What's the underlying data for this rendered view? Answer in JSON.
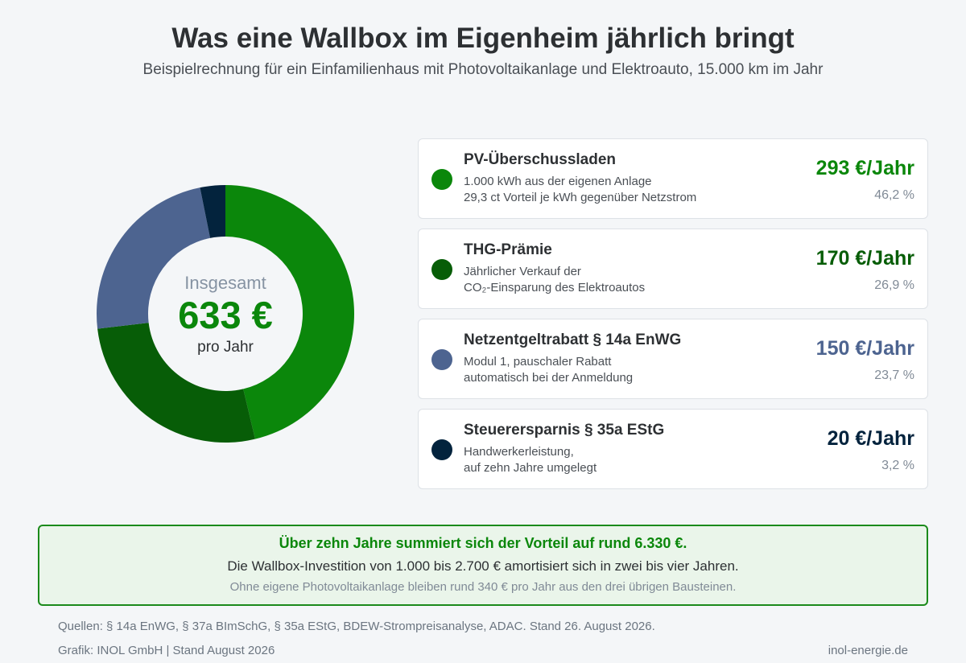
{
  "header": {
    "title": "Was eine Wallbox im Eigenheim jährlich bringt",
    "subtitle": "Beispielrechnung für ein Einfamilienhaus mit Photovoltaikanlage und Elektroauto, 15.000 km im Jahr"
  },
  "chart_data": {
    "type": "pie",
    "variant": "donut",
    "center": {
      "label": "Insgesamt",
      "value": "633 €",
      "unit": "pro Jahr"
    },
    "total": 633,
    "unit": "€/Jahr",
    "slices": [
      {
        "name": "PV-Überschussladen",
        "value": 293,
        "percent": 46.2,
        "color": "#0b870b"
      },
      {
        "name": "THG-Prämie",
        "value": 170,
        "percent": 26.9,
        "color": "#075d07"
      },
      {
        "name": "Netzentgeltrabatt § 14a EnWG",
        "value": 150,
        "percent": 23.7,
        "color": "#4d6490"
      },
      {
        "name": "Steuerersparnis § 35a EStG",
        "value": 20,
        "percent": 3.2,
        "color": "#03233d"
      }
    ]
  },
  "items": [
    {
      "name": "PV-Überschussladen",
      "desc1": "1.000 kWh aus der eigenen Anlage",
      "desc2": "29,3 ct Vorteil je kWh gegenüber Netzstrom",
      "amount": "293 €/Jahr",
      "percent": "46,2 %",
      "color": "#0b870b"
    },
    {
      "name": "THG-Prämie",
      "desc1": "Jährlicher Verkauf der",
      "desc2": "CO₂-Einsparung des Elektroautos",
      "amount": "170 €/Jahr",
      "percent": "26,9 %",
      "color": "#075d07"
    },
    {
      "name": "Netzentgeltrabatt § 14a EnWG",
      "desc1": "Modul 1, pauschaler Rabatt",
      "desc2": "automatisch bei der Anmeldung",
      "amount": "150 €/Jahr",
      "percent": "23,7 %",
      "color": "#4d6490"
    },
    {
      "name": "Steuerersparnis § 35a EStG",
      "desc1": "Handwerkerleistung,",
      "desc2": "auf zehn Jahre umgelegt",
      "amount": "20 €/Jahr",
      "percent": "3,2 %",
      "color": "#03233d"
    }
  ],
  "summary": {
    "headline": "Über zehn Jahre summiert sich der Vorteil auf rund 6.330 €.",
    "main": "Die Wallbox-Investition von 1.000 bis 2.700 € amortisiert sich in zwei bis vier Jahren.",
    "note": "Ohne eigene Photovoltaikanlage bleiben rund 340 € pro Jahr aus den drei übrigen Bausteinen."
  },
  "footer": {
    "sources": "Quellen: § 14a EnWG, § 37a BImSchG, § 35a EStG, BDEW-Strompreisanalyse, ADAC. Stand 26. August 2026.",
    "credit": "Grafik: INOL GmbH | Stand August 2026",
    "site": "inol-energie.de"
  }
}
